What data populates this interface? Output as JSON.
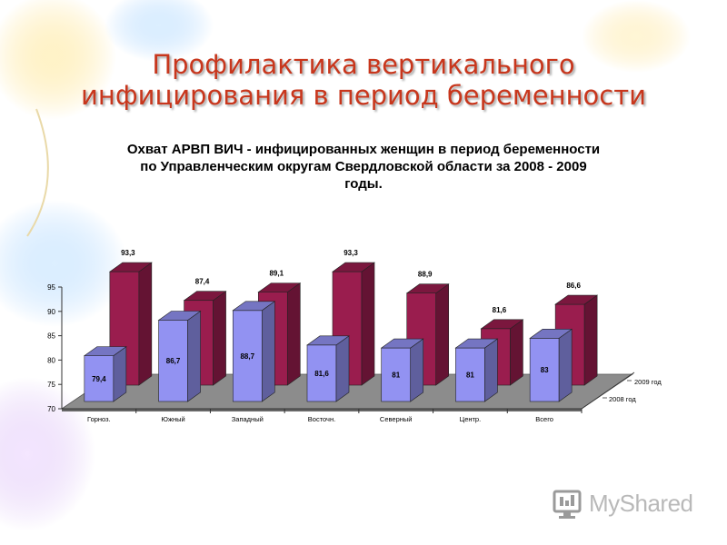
{
  "slide": {
    "title_lines": [
      "Профилактика вертикального",
      "инфицирования в период беременности"
    ]
  },
  "watermark": {
    "text": "MyShared",
    "icon": "monitor-logo-icon"
  },
  "colors": {
    "title": "#c8361c",
    "series_2009": "#9a1d4e",
    "series_2008": "#9292f2",
    "floor": "#8c8c8c"
  },
  "chart_data": {
    "type": "bar",
    "title_lines": [
      "Охват АРВП ВИЧ - инфицированных женщин в период беременности",
      "по Управленческим округам Свердловской области за 2008 - 2009",
      "годы."
    ],
    "categories": [
      "Горноз.",
      "Южный",
      "Западный",
      "Восточн.",
      "Северный",
      "Центр.",
      "Всего"
    ],
    "series": [
      {
        "name": "2008 год",
        "values": [
          79.4,
          86.7,
          88.7,
          81.6,
          81,
          81,
          83
        ],
        "labels": [
          "79,4",
          "86,7",
          "88,7",
          "81,6",
          "81",
          "81",
          "83"
        ]
      },
      {
        "name": "2009 год",
        "values": [
          93.3,
          87.4,
          89.1,
          93.3,
          88.9,
          81.6,
          86.6
        ],
        "labels": [
          "93,3",
          "87,4",
          "89,1",
          "93,3",
          "88,9",
          "81,6",
          "86,6"
        ]
      }
    ],
    "y_ticks": [
      70,
      75,
      80,
      85,
      90,
      95
    ],
    "ylim": [
      70,
      95
    ],
    "xlabel": "",
    "ylabel": "",
    "legend": "depth-axis-right"
  }
}
